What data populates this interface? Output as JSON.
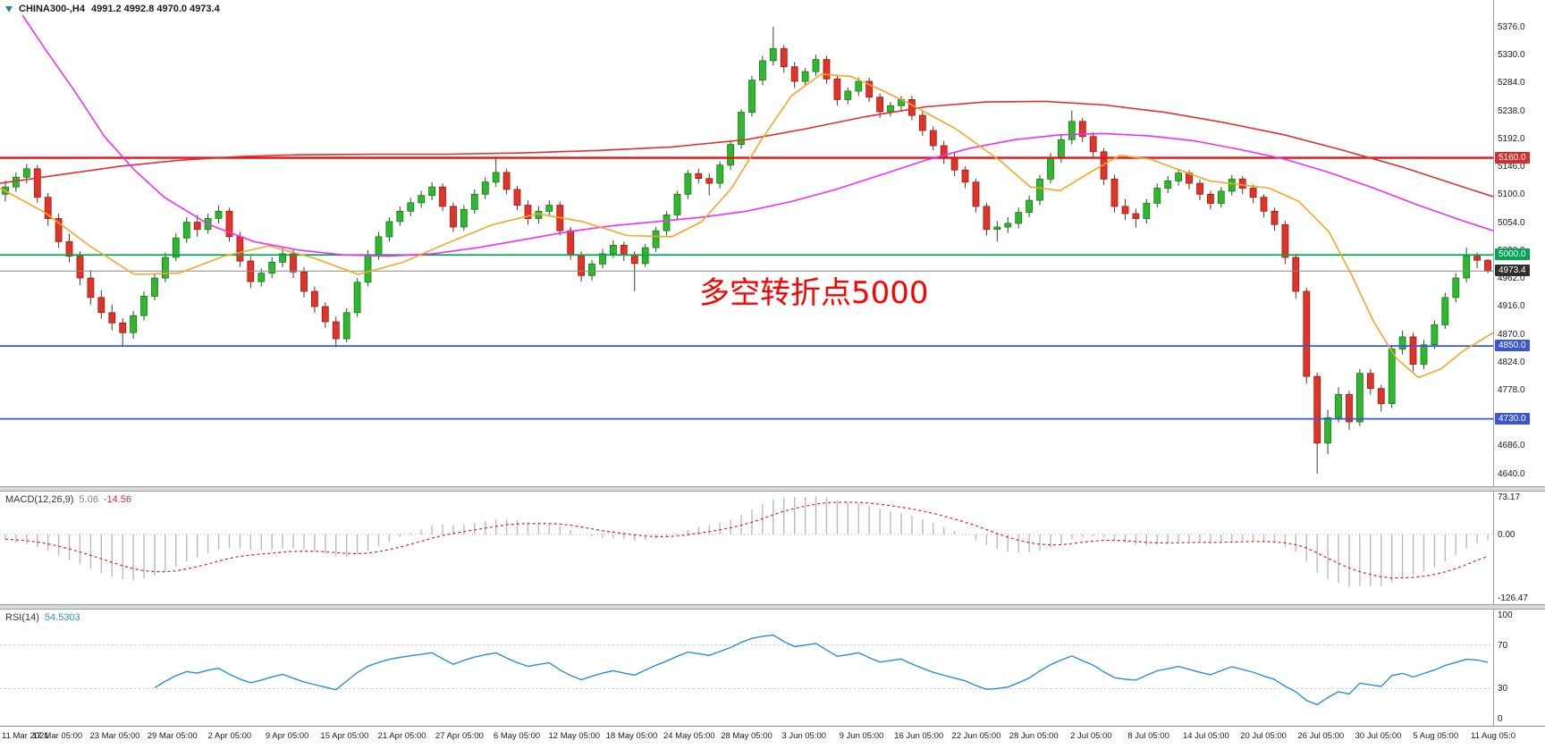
{
  "header": {
    "symbol": "CHINA300-,H4",
    "ohlc": "4991.2 4992.8 4970.0 4973.4"
  },
  "annotation": {
    "text": "多空转折点5000",
    "color": "#ff0000"
  },
  "colors": {
    "bull": "#2eb82e",
    "bear": "#e23328",
    "bull_border": "#157a15",
    "bear_border": "#9b1c10",
    "wick": "#3c3c3c"
  },
  "chart_data": {
    "type": "candlestick",
    "symbol": "CHINA300-",
    "timeframe": "H4",
    "ohlc_display": {
      "open": 4991.2,
      "high": 4992.8,
      "low": 4970.0,
      "close": 4973.4
    },
    "price_range": {
      "top": 5420,
      "bottom": 4619
    },
    "y_ticks": [
      "5376.0",
      "5330.0",
      "5284.0",
      "5238.0",
      "5192.0",
      "5146.0",
      "5100.0",
      "5054.0",
      "5008.0",
      "4962.0",
      "4916.0",
      "4870.0",
      "4824.0",
      "4778.0",
      "4732.0",
      "4686.0",
      "4640.0"
    ],
    "hlines": [
      {
        "price": 5160.0,
        "label": "5160.0",
        "color": "#e81212",
        "badge": "#d32f2f",
        "width": 2.4
      },
      {
        "price": 5000.0,
        "label": "5000.0",
        "color": "#00a651",
        "badge": "#00a651",
        "width": 1.8
      },
      {
        "price": 4850.0,
        "label": "4850.0",
        "color": "#3a57d0",
        "badge": "#3a57d0",
        "width": 1.8
      },
      {
        "price": 4730.0,
        "label": "4730.0",
        "color": "#3a57d0",
        "badge": "#3a57d0",
        "width": 1.8
      }
    ],
    "current_price": {
      "value": 4973.4,
      "label": "4973.4",
      "line_color": "#8a8a8a",
      "badge": "#2e2e2e"
    },
    "candles": [
      [
        5100,
        5122,
        5088,
        5112
      ],
      [
        5112,
        5136,
        5104,
        5128
      ],
      [
        5128,
        5150,
        5118,
        5142
      ],
      [
        5142,
        5148,
        5086,
        5095
      ],
      [
        5095,
        5102,
        5048,
        5060
      ],
      [
        5060,
        5068,
        5012,
        5022
      ],
      [
        5022,
        5035,
        4988,
        4998
      ],
      [
        4998,
        5006,
        4950,
        4962
      ],
      [
        4962,
        4975,
        4918,
        4930
      ],
      [
        4930,
        4942,
        4895,
        4905
      ],
      [
        4905,
        4918,
        4876,
        4888
      ],
      [
        4888,
        4896,
        4850,
        4872
      ],
      [
        4872,
        4908,
        4862,
        4900
      ],
      [
        4900,
        4940,
        4892,
        4932
      ],
      [
        4932,
        4970,
        4925,
        4962
      ],
      [
        4962,
        5004,
        4955,
        4996
      ],
      [
        4996,
        5036,
        4990,
        5028
      ],
      [
        5028,
        5062,
        5020,
        5054
      ],
      [
        5054,
        5066,
        5030,
        5042
      ],
      [
        5042,
        5068,
        5035,
        5060
      ],
      [
        5060,
        5082,
        5052,
        5072
      ],
      [
        5072,
        5078,
        5022,
        5030
      ],
      [
        5030,
        5038,
        4980,
        4990
      ],
      [
        4990,
        4998,
        4945,
        4956
      ],
      [
        4956,
        4978,
        4948,
        4970
      ],
      [
        4970,
        4996,
        4962,
        4988
      ],
      [
        4988,
        5012,
        4980,
        5002
      ],
      [
        5002,
        5008,
        4962,
        4972
      ],
      [
        4972,
        4980,
        4930,
        4940
      ],
      [
        4940,
        4948,
        4905,
        4915
      ],
      [
        4915,
        4922,
        4880,
        4890
      ],
      [
        4890,
        4898,
        4848,
        4862
      ],
      [
        4862,
        4912,
        4856,
        4905
      ],
      [
        4905,
        4962,
        4898,
        4955
      ],
      [
        4955,
        5008,
        4948,
        5000
      ],
      [
        5000,
        5038,
        4992,
        5030
      ],
      [
        5030,
        5062,
        5022,
        5055
      ],
      [
        5055,
        5080,
        5048,
        5072
      ],
      [
        5072,
        5094,
        5064,
        5086
      ],
      [
        5086,
        5106,
        5078,
        5098
      ],
      [
        5098,
        5120,
        5090,
        5112
      ],
      [
        5112,
        5118,
        5072,
        5080
      ],
      [
        5080,
        5086,
        5038,
        5046
      ],
      [
        5046,
        5082,
        5040,
        5075
      ],
      [
        5075,
        5108,
        5068,
        5100
      ],
      [
        5100,
        5128,
        5092,
        5120
      ],
      [
        5120,
        5162,
        5112,
        5136
      ],
      [
        5136,
        5142,
        5100,
        5108
      ],
      [
        5108,
        5114,
        5074,
        5082
      ],
      [
        5082,
        5090,
        5050,
        5060
      ],
      [
        5060,
        5080,
        5052,
        5072
      ],
      [
        5072,
        5090,
        5064,
        5082
      ],
      [
        5082,
        5088,
        5032,
        5040
      ],
      [
        5040,
        5046,
        4992,
        5000
      ],
      [
        5000,
        5006,
        4956,
        4966
      ],
      [
        4966,
        4992,
        4958,
        4985
      ],
      [
        4985,
        5010,
        4978,
        5002
      ],
      [
        5002,
        5024,
        4995,
        5016
      ],
      [
        5016,
        5022,
        4990,
        5000
      ],
      [
        5000,
        5006,
        4940,
        4986
      ],
      [
        4986,
        5018,
        4980,
        5012
      ],
      [
        5012,
        5046,
        5005,
        5040
      ],
      [
        5040,
        5072,
        5032,
        5066
      ],
      [
        5066,
        5106,
        5058,
        5100
      ],
      [
        5100,
        5140,
        5092,
        5134
      ],
      [
        5134,
        5142,
        5118,
        5126
      ],
      [
        5126,
        5134,
        5098,
        5118
      ],
      [
        5118,
        5154,
        5110,
        5148
      ],
      [
        5148,
        5188,
        5140,
        5182
      ],
      [
        5182,
        5240,
        5175,
        5235
      ],
      [
        5235,
        5295,
        5228,
        5288
      ],
      [
        5288,
        5328,
        5280,
        5320
      ],
      [
        5320,
        5376,
        5312,
        5340
      ],
      [
        5340,
        5346,
        5300,
        5310
      ],
      [
        5310,
        5318,
        5275,
        5286
      ],
      [
        5286,
        5308,
        5278,
        5302
      ],
      [
        5302,
        5330,
        5295,
        5322
      ],
      [
        5322,
        5328,
        5282,
        5290
      ],
      [
        5290,
        5296,
        5246,
        5256
      ],
      [
        5256,
        5276,
        5248,
        5270
      ],
      [
        5270,
        5292,
        5262,
        5286
      ],
      [
        5286,
        5292,
        5252,
        5260
      ],
      [
        5260,
        5266,
        5226,
        5236
      ],
      [
        5236,
        5252,
        5228,
        5246
      ],
      [
        5246,
        5262,
        5238,
        5256
      ],
      [
        5256,
        5262,
        5222,
        5230
      ],
      [
        5230,
        5236,
        5196,
        5205
      ],
      [
        5205,
        5212,
        5172,
        5180
      ],
      [
        5180,
        5188,
        5150,
        5160
      ],
      [
        5160,
        5168,
        5130,
        5140
      ],
      [
        5140,
        5146,
        5110,
        5120
      ],
      [
        5120,
        5126,
        5070,
        5080
      ],
      [
        5080,
        5086,
        5032,
        5042
      ],
      [
        5042,
        5056,
        5022,
        5046
      ],
      [
        5046,
        5062,
        5036,
        5052
      ],
      [
        5052,
        5078,
        5044,
        5070
      ],
      [
        5070,
        5098,
        5062,
        5090
      ],
      [
        5090,
        5132,
        5082,
        5125
      ],
      [
        5125,
        5168,
        5118,
        5160
      ],
      [
        5160,
        5198,
        5152,
        5190
      ],
      [
        5190,
        5238,
        5182,
        5220
      ],
      [
        5220,
        5226,
        5186,
        5195
      ],
      [
        5195,
        5202,
        5160,
        5170
      ],
      [
        5170,
        5176,
        5115,
        5125
      ],
      [
        5125,
        5132,
        5070,
        5080
      ],
      [
        5080,
        5092,
        5058,
        5068
      ],
      [
        5068,
        5076,
        5045,
        5060
      ],
      [
        5060,
        5092,
        5052,
        5085
      ],
      [
        5085,
        5118,
        5078,
        5110
      ],
      [
        5110,
        5130,
        5102,
        5122
      ],
      [
        5122,
        5142,
        5114,
        5135
      ],
      [
        5135,
        5140,
        5108,
        5118
      ],
      [
        5118,
        5124,
        5090,
        5100
      ],
      [
        5100,
        5106,
        5075,
        5085
      ],
      [
        5085,
        5112,
        5078,
        5105
      ],
      [
        5105,
        5132,
        5098,
        5125
      ],
      [
        5125,
        5130,
        5100,
        5110
      ],
      [
        5110,
        5116,
        5085,
        5095
      ],
      [
        5095,
        5100,
        5062,
        5072
      ],
      [
        5072,
        5078,
        5040,
        5050
      ],
      [
        5050,
        5056,
        4985,
        4996
      ],
      [
        4996,
        5002,
        4928,
        4940
      ],
      [
        4940,
        4946,
        4788,
        4800
      ],
      [
        4800,
        4806,
        4640,
        4690
      ],
      [
        4690,
        4745,
        4672,
        4732
      ],
      [
        4732,
        4782,
        4724,
        4770
      ],
      [
        4770,
        4776,
        4712,
        4725
      ],
      [
        4725,
        4812,
        4718,
        4805
      ],
      [
        4805,
        4812,
        4770,
        4780
      ],
      [
        4780,
        4786,
        4742,
        4755
      ],
      [
        4755,
        4852,
        4748,
        4845
      ],
      [
        4845,
        4875,
        4836,
        4865
      ],
      [
        4865,
        4872,
        4808,
        4820
      ],
      [
        4820,
        4860,
        4812,
        4852
      ],
      [
        4852,
        4892,
        4845,
        4885
      ],
      [
        4885,
        4938,
        4878,
        4930
      ],
      [
        4930,
        4970,
        4922,
        4962
      ],
      [
        4962,
        5012,
        4955,
        4998
      ],
      [
        4998,
        5004,
        4978,
        4991.2
      ],
      [
        4991.2,
        4992.8,
        4970.0,
        4973.4
      ]
    ],
    "moving_averages": [
      {
        "name": "ma-slow-red",
        "color": "#e03030",
        "points": [
          [
            0,
            5118
          ],
          [
            0.04,
            5132
          ],
          [
            0.08,
            5146
          ],
          [
            0.12,
            5156
          ],
          [
            0.16,
            5162
          ],
          [
            0.2,
            5165
          ],
          [
            0.25,
            5166
          ],
          [
            0.3,
            5166
          ],
          [
            0.35,
            5168
          ],
          [
            0.4,
            5172
          ],
          [
            0.45,
            5178
          ],
          [
            0.5,
            5190
          ],
          [
            0.54,
            5208
          ],
          [
            0.58,
            5228
          ],
          [
            0.62,
            5244
          ],
          [
            0.66,
            5252
          ],
          [
            0.7,
            5253
          ],
          [
            0.74,
            5247
          ],
          [
            0.78,
            5235
          ],
          [
            0.82,
            5218
          ],
          [
            0.86,
            5198
          ],
          [
            0.9,
            5172
          ],
          [
            0.94,
            5144
          ],
          [
            0.98,
            5112
          ],
          [
            1,
            5096
          ]
        ]
      },
      {
        "name": "ma-mid-magenta",
        "color": "#f030f0",
        "points": [
          [
            0.015,
            5395
          ],
          [
            0.03,
            5340
          ],
          [
            0.05,
            5270
          ],
          [
            0.07,
            5195
          ],
          [
            0.09,
            5140
          ],
          [
            0.11,
            5095
          ],
          [
            0.14,
            5050
          ],
          [
            0.17,
            5022
          ],
          [
            0.2,
            5008
          ],
          [
            0.23,
            5000
          ],
          [
            0.26,
            4998
          ],
          [
            0.29,
            5002
          ],
          [
            0.32,
            5012
          ],
          [
            0.35,
            5025
          ],
          [
            0.38,
            5038
          ],
          [
            0.41,
            5048
          ],
          [
            0.44,
            5055
          ],
          [
            0.47,
            5062
          ],
          [
            0.5,
            5072
          ],
          [
            0.53,
            5088
          ],
          [
            0.56,
            5108
          ],
          [
            0.59,
            5132
          ],
          [
            0.62,
            5156
          ],
          [
            0.65,
            5176
          ],
          [
            0.68,
            5190
          ],
          [
            0.71,
            5198
          ],
          [
            0.74,
            5200
          ],
          [
            0.77,
            5196
          ],
          [
            0.8,
            5188
          ],
          [
            0.83,
            5174
          ],
          [
            0.86,
            5158
          ],
          [
            0.89,
            5136
          ],
          [
            0.92,
            5110
          ],
          [
            0.95,
            5082
          ],
          [
            0.98,
            5056
          ],
          [
            1,
            5040
          ]
        ]
      },
      {
        "name": "ma-fast-orange",
        "color": "#f5a623",
        "points": [
          [
            0,
            5110
          ],
          [
            0.03,
            5070
          ],
          [
            0.06,
            5015
          ],
          [
            0.09,
            4968
          ],
          [
            0.12,
            4970
          ],
          [
            0.15,
            4998
          ],
          [
            0.18,
            5015
          ],
          [
            0.21,
            4995
          ],
          [
            0.24,
            4968
          ],
          [
            0.27,
            4988
          ],
          [
            0.3,
            5020
          ],
          [
            0.33,
            5050
          ],
          [
            0.36,
            5068
          ],
          [
            0.39,
            5055
          ],
          [
            0.42,
            5032
          ],
          [
            0.45,
            5030
          ],
          [
            0.47,
            5055
          ],
          [
            0.49,
            5110
          ],
          [
            0.51,
            5190
          ],
          [
            0.53,
            5262
          ],
          [
            0.55,
            5298
          ],
          [
            0.57,
            5294
          ],
          [
            0.59,
            5272
          ],
          [
            0.61,
            5248
          ],
          [
            0.64,
            5208
          ],
          [
            0.67,
            5155
          ],
          [
            0.69,
            5112
          ],
          [
            0.71,
            5106
          ],
          [
            0.73,
            5136
          ],
          [
            0.75,
            5164
          ],
          [
            0.77,
            5158
          ],
          [
            0.79,
            5140
          ],
          [
            0.81,
            5122
          ],
          [
            0.83,
            5116
          ],
          [
            0.85,
            5110
          ],
          [
            0.87,
            5088
          ],
          [
            0.89,
            5038
          ],
          [
            0.905,
            4968
          ],
          [
            0.92,
            4890
          ],
          [
            0.935,
            4830
          ],
          [
            0.95,
            4798
          ],
          [
            0.965,
            4812
          ],
          [
            0.98,
            4842
          ],
          [
            1,
            4872
          ]
        ]
      }
    ],
    "time_labels": [
      "11 Mar 2021",
      "17 Mar 05:00",
      "23 Mar 05:00",
      "29 Mar 05:00",
      "2 Apr 05:00",
      "9 Apr 05:00",
      "15 Apr 05:00",
      "21 Apr 05:00",
      "27 Apr 05:00",
      "6 May 05:00",
      "12 May 05:00",
      "18 May 05:00",
      "24 May 05:00",
      "28 May 05:00",
      "3 Jun 05:00",
      "9 Jun 05:00",
      "16 Jun 05:00",
      "22 Jun 05:00",
      "28 Jun 05:00",
      "2 Jul 05:00",
      "8 Jul 05:00",
      "14 Jul 05:00",
      "20 Jul 05:00",
      "26 Jul 05:00",
      "30 Jul 05:00",
      "5 Aug 05:00",
      "11 Aug 05:0"
    ],
    "indicators": [
      {
        "name": "MACD",
        "label": "MACD(12,26,9)",
        "values": [
          "5.06",
          "-14.56"
        ],
        "axis_labels": [
          "73.17",
          "0.00",
          "-126.47"
        ],
        "axis_max": 73.17,
        "axis_min": -126.47,
        "histogram_color": "#b6bac4",
        "signal_color": "#e02020"
      },
      {
        "name": "RSI",
        "label": "RSI(14)",
        "values": [
          "54.5303"
        ],
        "axis_labels": [
          "100",
          "70",
          "30",
          "0"
        ],
        "levels": [
          70,
          30
        ],
        "line_color": "#2a8fd8"
      }
    ]
  }
}
